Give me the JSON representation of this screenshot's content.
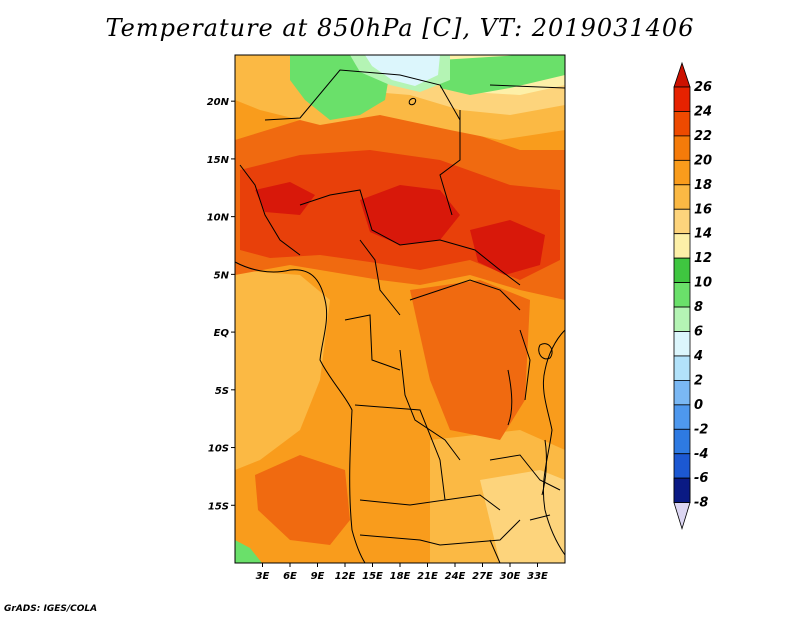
{
  "title": "Temperature at 850hPa [C], VT: 2019031406",
  "credit": "GrADS: IGES/COLA",
  "map": {
    "lon_range": [
      0,
      36
    ],
    "lat_range": [
      -20,
      24
    ],
    "lat_ticks": [
      {
        "value": 20,
        "label": "20N"
      },
      {
        "value": 15,
        "label": "15N"
      },
      {
        "value": 10,
        "label": "10N"
      },
      {
        "value": 5,
        "label": "5N"
      },
      {
        "value": 0,
        "label": "EQ"
      },
      {
        "value": -5,
        "label": "5S"
      },
      {
        "value": -10,
        "label": "10S"
      },
      {
        "value": -15,
        "label": "15S"
      }
    ],
    "lon_ticks": [
      {
        "value": 3,
        "label": "3E"
      },
      {
        "value": 6,
        "label": "6E"
      },
      {
        "value": 9,
        "label": "9E"
      },
      {
        "value": 12,
        "label": "12E"
      },
      {
        "value": 15,
        "label": "15E"
      },
      {
        "value": 18,
        "label": "18E"
      },
      {
        "value": 21,
        "label": "21E"
      },
      {
        "value": 24,
        "label": "24E"
      },
      {
        "value": 27,
        "label": "27E"
      },
      {
        "value": 30,
        "label": "30E"
      },
      {
        "value": 33,
        "label": "33E"
      }
    ]
  },
  "colorbar": {
    "levels": [
      {
        "label": "26",
        "color": "#e62200"
      },
      {
        "label": "24",
        "color": "#ee4a00"
      },
      {
        "label": "22",
        "color": "#f57b0a"
      },
      {
        "label": "20",
        "color": "#f99c1c"
      },
      {
        "label": "18",
        "color": "#fbb944"
      },
      {
        "label": "16",
        "color": "#fdd47c"
      },
      {
        "label": "14",
        "color": "#fdf0a8"
      },
      {
        "label": "12",
        "color": "#3fc640"
      },
      {
        "label": "10",
        "color": "#6ae06a"
      },
      {
        "label": "8",
        "color": "#b4f4b4"
      },
      {
        "label": "6",
        "color": "#dcf6fc"
      },
      {
        "label": "4",
        "color": "#b2e2fa"
      },
      {
        "label": "2",
        "color": "#7ab8f4"
      },
      {
        "label": "0",
        "color": "#4e98ee"
      },
      {
        "label": "-2",
        "color": "#2e7ae2"
      },
      {
        "label": "-4",
        "color": "#1c58d2"
      },
      {
        "label": "-6",
        "color": "#1238b2"
      },
      {
        "label": "-8",
        "color": "#0a1a84"
      }
    ],
    "top_arrow_color": "#cc1100",
    "bottom_arrow_color": "#dcd6f2"
  },
  "colors": {
    "hot": "#d8180a",
    "very_warm": "#e8400a",
    "warm": "#f06a10",
    "mild": "#f99c1c",
    "cool": "#fbb944",
    "cooler": "#fdd47c",
    "pale": "#fdf0a8",
    "green": "#6ae06a",
    "light_green": "#b4f4b4",
    "light_blue": "#dcf6fc"
  }
}
